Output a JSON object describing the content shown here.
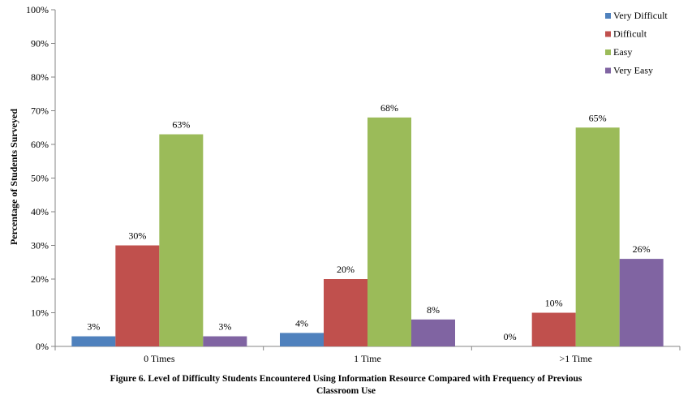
{
  "chart_data": {
    "type": "bar",
    "categories": [
      "0 Times",
      "1 Time",
      ">1 Time"
    ],
    "series": [
      {
        "name": "Very Difficult",
        "values": [
          3,
          4,
          0
        ],
        "labels": [
          "3%",
          "4%",
          "0%"
        ],
        "color": "#4F81BD"
      },
      {
        "name": "Difficult",
        "values": [
          30,
          20,
          10
        ],
        "labels": [
          "30%",
          "20%",
          "10%"
        ],
        "color": "#C0504D"
      },
      {
        "name": "Easy",
        "values": [
          63,
          68,
          65
        ],
        "labels": [
          "63%",
          "68%",
          "65%"
        ],
        "color": "#9BBB59"
      },
      {
        "name": "Very Easy",
        "values": [
          3,
          8,
          26
        ],
        "labels": [
          "3%",
          "8%",
          "26%"
        ],
        "color": "#8064A2"
      }
    ],
    "ylabel": "Percentage of Students  Surveyed",
    "yticks": [
      "0%",
      "10%",
      "20%",
      "30%",
      "40%",
      "50%",
      "60%",
      "70%",
      "80%",
      "90%",
      "100%"
    ],
    "ylim": [
      0,
      100
    ],
    "grid": false,
    "legend": "top-right"
  },
  "caption": {
    "line1": "Figure 6. Level of Difficulty Students  Encountered Using Information Resource Compared with Frequency of Previous",
    "line2": "Classroom Use"
  }
}
